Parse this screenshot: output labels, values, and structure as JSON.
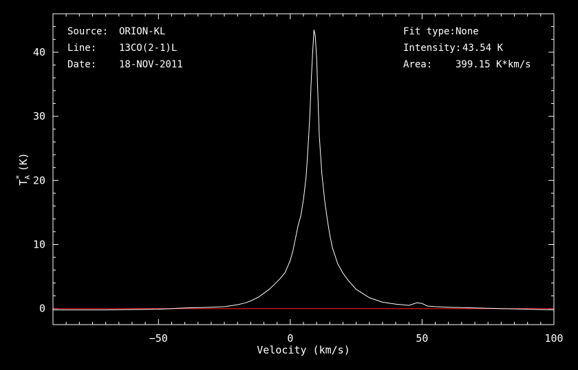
{
  "chart_data": {
    "type": "line",
    "title": "",
    "xlabel": "Velocity (km/s)",
    "ylabel": {
      "main": "T",
      "sub": "A",
      "sup": "*",
      "unit": "(K)"
    },
    "xlim": [
      -90,
      100
    ],
    "ylim": [
      -2.5,
      46
    ],
    "xticks": [
      -50,
      0,
      50,
      100
    ],
    "yticks": [
      0,
      10,
      20,
      30,
      40
    ],
    "grid": false,
    "background": "#000000",
    "line_color": "#ffffff",
    "baseline": {
      "y": 0,
      "color": "#ff2020"
    },
    "info_left": [
      {
        "key": "Source:",
        "value": "ORION-KL"
      },
      {
        "key": "Line:",
        "value": "13CO(2-1)L"
      },
      {
        "key": "Date:",
        "value": "18-NOV-2011"
      }
    ],
    "info_right": [
      {
        "key": "Fit type:",
        "value": "None"
      },
      {
        "key": "Intensity:",
        "value": "43.54 K"
      },
      {
        "key": "Area:",
        "value": "399.15 K*km/s"
      }
    ],
    "series": [
      {
        "x": [
          -90,
          -70,
          -50,
          -40,
          -30,
          -25,
          -20,
          -17,
          -15,
          -12,
          -10,
          -8,
          -6,
          -4,
          -2,
          0,
          1,
          2,
          3,
          4,
          5,
          6,
          6.5,
          7,
          7.5,
          8,
          8.5,
          9,
          9.5,
          10,
          10.5,
          11,
          12,
          13,
          14,
          15,
          16,
          18,
          20,
          22,
          25,
          30,
          35,
          40,
          45,
          48,
          50,
          52,
          55,
          60,
          70,
          80,
          90,
          100
        ],
        "y": [
          -0.2,
          -0.2,
          -0.1,
          0.1,
          0.2,
          0.3,
          0.6,
          0.9,
          1.2,
          1.8,
          2.4,
          3.0,
          3.8,
          4.6,
          5.6,
          7.5,
          9.0,
          11.0,
          13.0,
          14.5,
          17.0,
          20.5,
          23.5,
          27.0,
          31.0,
          36.0,
          40.0,
          43.5,
          42.5,
          39.0,
          33.0,
          27.0,
          21.0,
          17.0,
          14.0,
          11.5,
          9.5,
          7.0,
          5.5,
          4.4,
          3.0,
          1.7,
          1.0,
          0.7,
          0.5,
          0.9,
          0.8,
          0.4,
          0.3,
          0.2,
          0.1,
          0.0,
          -0.1,
          -0.2
        ]
      }
    ]
  }
}
